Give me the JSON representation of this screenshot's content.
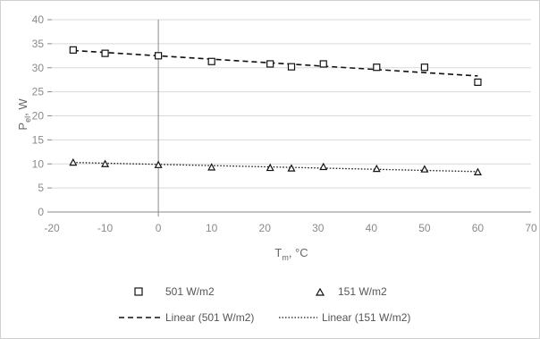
{
  "chart_data": {
    "type": "scatter",
    "xlabel": {
      "main": "T",
      "sub": "m",
      "tail": ", °C"
    },
    "ylabel": {
      "main": "P",
      "sub": "el",
      "tail": ", W"
    },
    "xlim": [
      -20,
      70
    ],
    "ylim": [
      0,
      40
    ],
    "x_ticks": [
      -20,
      -10,
      0,
      10,
      20,
      30,
      40,
      50,
      60,
      70
    ],
    "y_ticks": [
      0,
      5,
      10,
      15,
      20,
      25,
      30,
      35,
      40
    ],
    "grid": true,
    "legend_position": "bottom",
    "series": [
      {
        "name": "501 W/m2",
        "marker": "square",
        "color": "#111111",
        "x": [
          -16,
          -10,
          0,
          10,
          21,
          25,
          31,
          41,
          50,
          60
        ],
        "y": [
          33.7,
          33.0,
          32.5,
          31.3,
          30.8,
          30.2,
          30.8,
          30.1,
          30.1,
          27.0
        ]
      },
      {
        "name": "151 W/m2",
        "marker": "triangle",
        "color": "#111111",
        "x": [
          -16,
          -10,
          0,
          10,
          21,
          25,
          31,
          41,
          50,
          60
        ],
        "y": [
          10.3,
          10.0,
          9.8,
          9.3,
          9.2,
          9.1,
          9.4,
          9.0,
          8.9,
          8.3
        ]
      }
    ],
    "trendlines": [
      {
        "name": "Linear (501 W/m2)",
        "x": [
          -16,
          60
        ],
        "y": [
          33.6,
          28.3
        ],
        "dash": "6,4",
        "width": 1.6
      },
      {
        "name": "Linear (151 W/m2)",
        "x": [
          -16,
          60
        ],
        "y": [
          10.3,
          8.4
        ],
        "dash": "1.5,2",
        "width": 1.3
      }
    ]
  }
}
